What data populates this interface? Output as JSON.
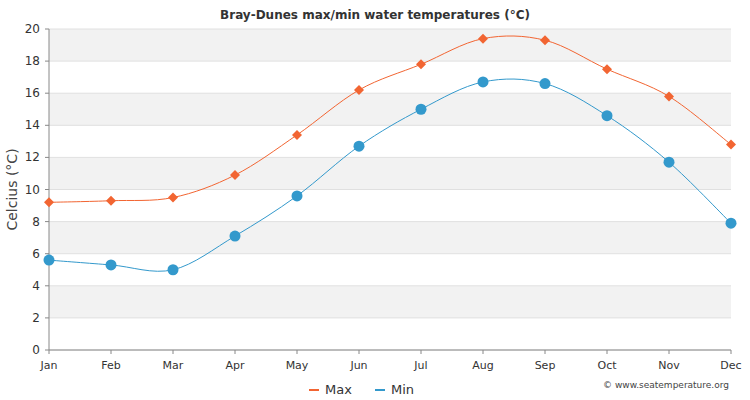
{
  "chart_data": {
    "type": "line",
    "title": "Bray-Dunes max/min water temperatures (°C)",
    "y_label": "Celcius (°C)",
    "categories": [
      "Jan",
      "Feb",
      "Mar",
      "Apr",
      "May",
      "Jun",
      "Jul",
      "Aug",
      "Sep",
      "Oct",
      "Nov",
      "Dec"
    ],
    "series": [
      {
        "name": "Max",
        "color": "#f26532",
        "marker": "diamond",
        "values": [
          9.2,
          9.3,
          9.5,
          10.9,
          13.4,
          16.2,
          17.8,
          19.4,
          19.3,
          17.5,
          15.8,
          12.8
        ]
      },
      {
        "name": "Min",
        "color": "#3399cc",
        "marker": "circle",
        "values": [
          5.6,
          5.3,
          5.0,
          7.1,
          9.6,
          12.7,
          15.0,
          16.7,
          16.6,
          14.6,
          11.7,
          7.9
        ]
      }
    ],
    "ylim": [
      0,
      20
    ],
    "yticks": [
      0,
      2,
      4,
      6,
      8,
      10,
      12,
      14,
      16,
      18,
      20
    ],
    "grid": true,
    "legend": "bottom",
    "annotations": [
      "© www.seatemperature.org"
    ]
  }
}
